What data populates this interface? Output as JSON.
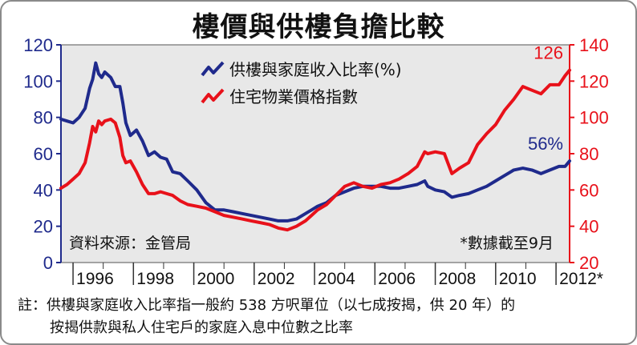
{
  "title": "樓價與供樓負擔比較",
  "chart_data": {
    "type": "line",
    "title": "樓價與供樓負擔比較",
    "x_ticks": [
      "1996",
      "1998",
      "2000",
      "2002",
      "2004",
      "2006",
      "2008",
      "2010",
      "2012*"
    ],
    "xlim": [
      1995.6,
      2012.45
    ],
    "y_left": {
      "ticks": [
        "0",
        "20",
        "40",
        "60",
        "80",
        "100",
        "120"
      ],
      "lim": [
        0,
        120
      ],
      "color": "#1f2a8c"
    },
    "y_right": {
      "ticks": [
        "20",
        "40",
        "60",
        "80",
        "100",
        "120",
        "140"
      ],
      "lim": [
        20,
        140
      ],
      "color": "#e8111a"
    },
    "grid": false,
    "legend": "top-center",
    "series": [
      {
        "name": "供樓與家庭收入比率(%)",
        "axis": "left",
        "color": "#1f2a8c",
        "end_label": "56%",
        "points": [
          [
            1995.6,
            79
          ],
          [
            1995.8,
            78
          ],
          [
            1996.0,
            77
          ],
          [
            1996.2,
            80
          ],
          [
            1996.4,
            85
          ],
          [
            1996.55,
            96
          ],
          [
            1996.65,
            101
          ],
          [
            1996.75,
            110
          ],
          [
            1996.85,
            104
          ],
          [
            1996.95,
            102
          ],
          [
            1997.05,
            105
          ],
          [
            1997.25,
            102
          ],
          [
            1997.4,
            97
          ],
          [
            1997.55,
            97
          ],
          [
            1997.65,
            88
          ],
          [
            1997.75,
            77
          ],
          [
            1997.9,
            70
          ],
          [
            1998.1,
            73
          ],
          [
            1998.3,
            67
          ],
          [
            1998.5,
            59
          ],
          [
            1998.7,
            61
          ],
          [
            1998.9,
            58
          ],
          [
            1999.1,
            57
          ],
          [
            1999.3,
            50
          ],
          [
            1999.55,
            49
          ],
          [
            1999.8,
            45
          ],
          [
            2000.1,
            40
          ],
          [
            2000.4,
            33
          ],
          [
            2000.7,
            29
          ],
          [
            2001.0,
            29
          ],
          [
            2001.3,
            28
          ],
          [
            2001.6,
            27
          ],
          [
            2001.9,
            26
          ],
          [
            2002.2,
            25
          ],
          [
            2002.5,
            24
          ],
          [
            2002.8,
            23
          ],
          [
            2003.1,
            23
          ],
          [
            2003.4,
            24
          ],
          [
            2003.7,
            27
          ],
          [
            2003.9,
            29
          ],
          [
            2004.1,
            31
          ],
          [
            2004.4,
            33
          ],
          [
            2004.7,
            37
          ],
          [
            2005.0,
            39
          ],
          [
            2005.3,
            41
          ],
          [
            2005.6,
            42
          ],
          [
            2005.9,
            42
          ],
          [
            2006.2,
            42
          ],
          [
            2006.5,
            41
          ],
          [
            2006.8,
            41
          ],
          [
            2007.1,
            42
          ],
          [
            2007.4,
            43
          ],
          [
            2007.65,
            45
          ],
          [
            2007.75,
            42
          ],
          [
            2008.0,
            40
          ],
          [
            2008.3,
            39
          ],
          [
            2008.55,
            36
          ],
          [
            2008.8,
            37
          ],
          [
            2009.1,
            38
          ],
          [
            2009.4,
            40
          ],
          [
            2009.7,
            42
          ],
          [
            2010.0,
            45
          ],
          [
            2010.3,
            48
          ],
          [
            2010.6,
            51
          ],
          [
            2010.9,
            52
          ],
          [
            2011.2,
            51
          ],
          [
            2011.5,
            49
          ],
          [
            2011.8,
            51
          ],
          [
            2012.1,
            53
          ],
          [
            2012.3,
            53
          ],
          [
            2012.45,
            56
          ]
        ]
      },
      {
        "name": "住宅物業價格指數",
        "axis": "right",
        "color": "#e8111a",
        "end_label": "126",
        "points": [
          [
            1995.6,
            61
          ],
          [
            1995.8,
            63
          ],
          [
            1996.0,
            66
          ],
          [
            1996.2,
            69
          ],
          [
            1996.4,
            75
          ],
          [
            1996.55,
            86
          ],
          [
            1996.65,
            95
          ],
          [
            1996.75,
            92
          ],
          [
            1996.85,
            98
          ],
          [
            1996.95,
            96
          ],
          [
            1997.05,
            98
          ],
          [
            1997.25,
            99
          ],
          [
            1997.4,
            97
          ],
          [
            1997.55,
            89
          ],
          [
            1997.65,
            79
          ],
          [
            1997.75,
            75
          ],
          [
            1997.9,
            76
          ],
          [
            1998.1,
            70
          ],
          [
            1998.3,
            63
          ],
          [
            1998.5,
            58
          ],
          [
            1998.7,
            58
          ],
          [
            1998.9,
            59
          ],
          [
            1999.1,
            58
          ],
          [
            1999.3,
            57
          ],
          [
            1999.55,
            54
          ],
          [
            1999.8,
            52
          ],
          [
            2000.1,
            51
          ],
          [
            2000.4,
            50
          ],
          [
            2000.7,
            48
          ],
          [
            2001.0,
            46
          ],
          [
            2001.3,
            45
          ],
          [
            2001.6,
            44
          ],
          [
            2001.9,
            43
          ],
          [
            2002.2,
            42
          ],
          [
            2002.5,
            41
          ],
          [
            2002.8,
            39
          ],
          [
            2003.1,
            38
          ],
          [
            2003.4,
            40
          ],
          [
            2003.7,
            43
          ],
          [
            2003.9,
            46
          ],
          [
            2004.1,
            49
          ],
          [
            2004.4,
            52
          ],
          [
            2004.7,
            57
          ],
          [
            2005.0,
            62
          ],
          [
            2005.3,
            64
          ],
          [
            2005.6,
            62
          ],
          [
            2005.9,
            61
          ],
          [
            2006.2,
            63
          ],
          [
            2006.5,
            64
          ],
          [
            2006.8,
            66
          ],
          [
            2007.1,
            69
          ],
          [
            2007.4,
            73
          ],
          [
            2007.65,
            81
          ],
          [
            2007.75,
            80
          ],
          [
            2008.0,
            81
          ],
          [
            2008.3,
            80
          ],
          [
            2008.55,
            69
          ],
          [
            2008.8,
            72
          ],
          [
            2009.1,
            75
          ],
          [
            2009.4,
            85
          ],
          [
            2009.7,
            91
          ],
          [
            2010.0,
            96
          ],
          [
            2010.3,
            104
          ],
          [
            2010.6,
            110
          ],
          [
            2010.9,
            117
          ],
          [
            2011.2,
            115
          ],
          [
            2011.5,
            113
          ],
          [
            2011.8,
            118
          ],
          [
            2012.1,
            118
          ],
          [
            2012.3,
            123
          ],
          [
            2012.45,
            126
          ]
        ]
      }
    ]
  },
  "source": "資料來源：金管局",
  "footnote_date": "*數據截至9月",
  "note_line1": "註：供樓與家庭收入比率指一般約 538 方呎單位（以七成按揭，供 20 年）的",
  "note_line2": "按揭供款與私人住宅戶的家庭入息中位數之比率"
}
